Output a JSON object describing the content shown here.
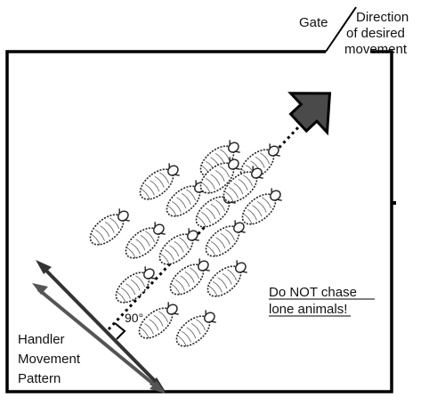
{
  "labels": {
    "gate": "Gate",
    "direction_line1": "Direction",
    "direction_line2": "of desired",
    "direction_line3": "movement",
    "warning_line1": "Do NOT chase",
    "warning_line2": "lone animals!",
    "handler_line1": "Handler",
    "handler_line2": "Movement",
    "handler_line3": "Pattern",
    "angle": "90°"
  },
  "colors": {
    "outline": "#000000",
    "arrow_fill": "#4a4a4a",
    "animal_fill": "#ffffff",
    "animal_stroke": "#222222"
  },
  "animal_count": 17
}
